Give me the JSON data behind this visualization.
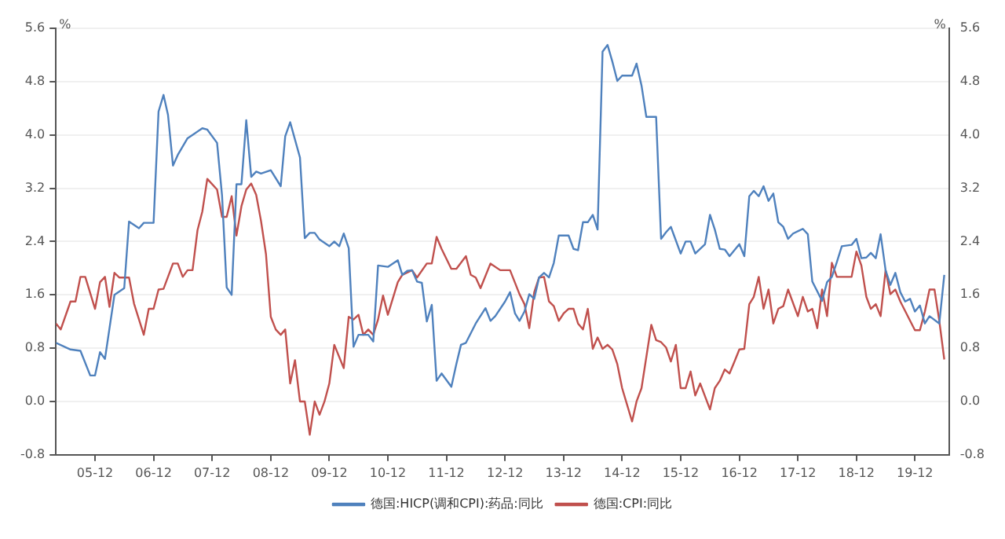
{
  "chart_data": {
    "type": "line",
    "ylabel": "%",
    "y2label": "%",
    "xlim": [
      "2005-04",
      "2020-07"
    ],
    "xticks": [
      {
        "value": "2005-12",
        "label": "05-12"
      },
      {
        "value": "2006-12",
        "label": "06-12"
      },
      {
        "value": "2007-12",
        "label": "07-12"
      },
      {
        "value": "2008-12",
        "label": "08-12"
      },
      {
        "value": "2009-12",
        "label": "09-12"
      },
      {
        "value": "2010-12",
        "label": "10-12"
      },
      {
        "value": "2011-12",
        "label": "11-12"
      },
      {
        "value": "2012-12",
        "label": "12-12"
      },
      {
        "value": "2013-12",
        "label": "13-12"
      },
      {
        "value": "2014-12",
        "label": "14-12"
      },
      {
        "value": "2015-12",
        "label": "15-12"
      },
      {
        "value": "2016-12",
        "label": "16-12"
      },
      {
        "value": "2017-12",
        "label": "17-12"
      },
      {
        "value": "2018-12",
        "label": "18-12"
      },
      {
        "value": "2019-12",
        "label": "19-12"
      }
    ],
    "ylim": [
      -0.8,
      5.6
    ],
    "yticks": [
      {
        "value": -0.8,
        "label": "-0.8"
      },
      {
        "value": 0,
        "label": "0.0"
      },
      {
        "value": 0.8,
        "label": "0.8"
      },
      {
        "value": 1.6,
        "label": "1.6"
      },
      {
        "value": 2.4,
        "label": "2.4"
      },
      {
        "value": 3.2,
        "label": "3.2"
      },
      {
        "value": 4,
        "label": "4.0"
      },
      {
        "value": 4.8,
        "label": "4.8"
      },
      {
        "value": 5.6,
        "label": "5.6"
      }
    ],
    "y2lim": [
      -0.8,
      5.6
    ],
    "y2ticks": [
      {
        "value": -0.8,
        "label": "-0.8"
      },
      {
        "value": 0,
        "label": "0.0"
      },
      {
        "value": 0.8,
        "label": "0.8"
      },
      {
        "value": 1.6,
        "label": "1.6"
      },
      {
        "value": 2.4,
        "label": "2.4"
      },
      {
        "value": 3.2,
        "label": "3.2"
      },
      {
        "value": 4,
        "label": "4.0"
      },
      {
        "value": 4.8,
        "label": "4.8"
      },
      {
        "value": 5.6,
        "label": "5.6"
      }
    ],
    "grid": "y",
    "legend": "bottom",
    "marker": "none",
    "line_style": "solid",
    "series": [
      {
        "name": "德国:HICP(调和CPI):药品:同比",
        "color": "#4f81bd",
        "x": [
          "2005-04",
          "2005-07",
          "2005-09",
          "2005-11",
          "2005-12",
          "2006-01",
          "2006-02",
          "2006-04",
          "2006-06",
          "2006-07",
          "2006-09",
          "2006-10",
          "2006-12",
          "2007-01",
          "2007-02",
          "2007-03",
          "2007-04",
          "2007-05",
          "2007-07",
          "2007-08",
          "2007-10",
          "2007-11",
          "2008-01",
          "2008-02",
          "2008-03",
          "2008-04",
          "2008-05",
          "2008-06",
          "2008-07",
          "2008-08",
          "2008-09",
          "2008-10",
          "2008-12",
          "2009-02",
          "2009-03",
          "2009-04",
          "2009-06",
          "2009-07",
          "2009-08",
          "2009-09",
          "2009-10",
          "2009-12",
          "2010-01",
          "2010-02",
          "2010-03",
          "2010-04",
          "2010-05",
          "2010-06",
          "2010-08",
          "2010-09",
          "2010-10",
          "2010-12",
          "2011-02",
          "2011-03",
          "2011-04",
          "2011-05",
          "2011-06",
          "2011-07",
          "2011-08",
          "2011-09",
          "2011-10",
          "2011-11",
          "2012-01",
          "2012-02",
          "2012-03",
          "2012-04",
          "2012-06",
          "2012-08",
          "2012-09",
          "2012-10",
          "2012-12",
          "2013-01",
          "2013-02",
          "2013-03",
          "2013-04",
          "2013-05",
          "2013-06",
          "2013-07",
          "2013-08",
          "2013-09",
          "2013-10",
          "2013-11",
          "2014-01",
          "2014-02",
          "2014-03",
          "2014-04",
          "2014-05",
          "2014-06",
          "2014-07",
          "2014-08",
          "2014-09",
          "2014-10",
          "2014-11",
          "2014-12",
          "2015-02",
          "2015-03",
          "2015-04",
          "2015-05",
          "2015-07",
          "2015-08",
          "2015-09",
          "2015-10",
          "2015-12",
          "2016-01",
          "2016-02",
          "2016-03",
          "2016-05",
          "2016-06",
          "2016-07",
          "2016-08",
          "2016-09",
          "2016-10",
          "2016-12",
          "2017-01",
          "2017-02",
          "2017-03",
          "2017-04",
          "2017-05",
          "2017-06",
          "2017-07",
          "2017-08",
          "2017-09",
          "2017-10",
          "2017-11",
          "2018-01",
          "2018-02",
          "2018-03",
          "2018-05",
          "2018-06",
          "2018-07",
          "2018-08",
          "2018-09",
          "2018-11",
          "2018-12",
          "2019-01",
          "2019-02",
          "2019-03",
          "2019-04",
          "2019-05",
          "2019-06",
          "2019-07",
          "2019-08",
          "2019-09",
          "2019-10",
          "2019-11",
          "2019-12",
          "2020-01",
          "2020-02",
          "2020-03",
          "2020-05",
          "2020-06"
        ],
        "values": [
          0.88,
          0.78,
          0.76,
          0.39,
          0.39,
          0.74,
          0.64,
          1.6,
          1.7,
          2.7,
          2.6,
          2.68,
          2.68,
          4.35,
          4.6,
          4.3,
          3.54,
          3.7,
          3.95,
          4.0,
          4.1,
          4.08,
          3.88,
          3.09,
          1.71,
          1.6,
          3.26,
          3.26,
          4.22,
          3.37,
          3.45,
          3.42,
          3.47,
          3.23,
          3.98,
          4.19,
          3.66,
          2.45,
          2.53,
          2.53,
          2.43,
          2.33,
          2.4,
          2.33,
          2.52,
          2.3,
          0.82,
          1.0,
          1.0,
          0.9,
          2.04,
          2.02,
          2.12,
          1.9,
          1.96,
          1.97,
          1.8,
          1.78,
          1.2,
          1.45,
          0.31,
          0.42,
          0.22,
          0.56,
          0.85,
          0.88,
          1.17,
          1.4,
          1.21,
          1.28,
          1.5,
          1.64,
          1.32,
          1.21,
          1.35,
          1.61,
          1.54,
          1.86,
          1.93,
          1.86,
          2.08,
          2.49,
          2.49,
          2.29,
          2.27,
          2.69,
          2.69,
          2.8,
          2.58,
          5.25,
          5.35,
          5.1,
          4.81,
          4.89,
          4.89,
          5.07,
          4.74,
          4.27,
          4.27,
          2.44,
          2.54,
          2.62,
          2.22,
          2.4,
          2.4,
          2.22,
          2.36,
          2.8,
          2.58,
          2.29,
          2.28,
          2.18,
          2.36,
          2.18,
          3.08,
          3.16,
          3.08,
          3.23,
          3.01,
          3.12,
          2.69,
          2.62,
          2.44,
          2.52,
          2.59,
          2.51,
          1.8,
          1.51,
          1.79,
          1.87,
          2.09,
          2.33,
          2.35,
          2.44,
          2.15,
          2.16,
          2.23,
          2.15,
          2.51,
          1.97,
          1.75,
          1.93,
          1.64,
          1.5,
          1.54,
          1.35,
          1.44,
          1.17,
          1.28,
          1.17,
          1.9
        ]
      },
      {
        "name": "德国:CPI:同比",
        "color": "#c0504d",
        "x": [
          "2005-04",
          "2005-05",
          "2005-07",
          "2005-08",
          "2005-09",
          "2005-10",
          "2005-12",
          "2006-01",
          "2006-02",
          "2006-03",
          "2006-04",
          "2006-05",
          "2006-07",
          "2006-08",
          "2006-10",
          "2006-11",
          "2006-12",
          "2007-01",
          "2007-02",
          "2007-04",
          "2007-05",
          "2007-06",
          "2007-07",
          "2007-08",
          "2007-09",
          "2007-10",
          "2007-11",
          "2008-01",
          "2008-02",
          "2008-03",
          "2008-04",
          "2008-05",
          "2008-06",
          "2008-07",
          "2008-08",
          "2008-09",
          "2008-10",
          "2008-11",
          "2008-12",
          "2009-01",
          "2009-02",
          "2009-03",
          "2009-04",
          "2009-05",
          "2009-06",
          "2009-07",
          "2009-08",
          "2009-09",
          "2009-10",
          "2009-11",
          "2009-12",
          "2010-01",
          "2010-03",
          "2010-04",
          "2010-05",
          "2010-06",
          "2010-07",
          "2010-08",
          "2010-09",
          "2010-10",
          "2010-11",
          "2010-12",
          "2011-02",
          "2011-03",
          "2011-05",
          "2011-06",
          "2011-08",
          "2011-09",
          "2011-10",
          "2011-11",
          "2012-01",
          "2012-02",
          "2012-04",
          "2012-05",
          "2012-06",
          "2012-07",
          "2012-09",
          "2012-11",
          "2013-01",
          "2013-03",
          "2013-04",
          "2013-05",
          "2013-06",
          "2013-07",
          "2013-08",
          "2013-09",
          "2013-10",
          "2013-11",
          "2013-12",
          "2014-01",
          "2014-02",
          "2014-03",
          "2014-04",
          "2014-05",
          "2014-06",
          "2014-07",
          "2014-08",
          "2014-09",
          "2014-10",
          "2014-11",
          "2014-12",
          "2015-02",
          "2015-03",
          "2015-04",
          "2015-06",
          "2015-07",
          "2015-08",
          "2015-09",
          "2015-10",
          "2015-11",
          "2015-12",
          "2016-01",
          "2016-02",
          "2016-03",
          "2016-04",
          "2016-06",
          "2016-07",
          "2016-08",
          "2016-09",
          "2016-10",
          "2016-11",
          "2016-12",
          "2017-01",
          "2017-02",
          "2017-03",
          "2017-04",
          "2017-05",
          "2017-06",
          "2017-07",
          "2017-08",
          "2017-09",
          "2017-10",
          "2017-12",
          "2018-01",
          "2018-02",
          "2018-03",
          "2018-04",
          "2018-05",
          "2018-06",
          "2018-07",
          "2018-08",
          "2018-09",
          "2018-11",
          "2018-12",
          "2019-01",
          "2019-02",
          "2019-03",
          "2019-04",
          "2019-05",
          "2019-06",
          "2019-07",
          "2019-08",
          "2019-09",
          "2019-11",
          "2019-12",
          "2020-01",
          "2020-02",
          "2020-03",
          "2020-04",
          "2020-05",
          "2020-06"
        ],
        "values": [
          1.17,
          1.08,
          1.5,
          1.5,
          1.87,
          1.87,
          1.39,
          1.79,
          1.87,
          1.42,
          1.93,
          1.86,
          1.86,
          1.47,
          1.0,
          1.39,
          1.39,
          1.68,
          1.69,
          2.07,
          2.07,
          1.87,
          1.97,
          1.97,
          2.57,
          2.85,
          3.34,
          3.18,
          2.77,
          2.77,
          3.08,
          2.49,
          2.93,
          3.18,
          3.27,
          3.1,
          2.71,
          2.21,
          1.27,
          1.08,
          1.0,
          1.08,
          0.27,
          0.62,
          0.0,
          0.0,
          -0.5,
          0.0,
          -0.2,
          0.0,
          0.27,
          0.85,
          0.5,
          1.27,
          1.23,
          1.3,
          1.0,
          1.08,
          1.0,
          1.23,
          1.59,
          1.3,
          1.79,
          1.9,
          1.97,
          1.86,
          2.07,
          2.07,
          2.47,
          2.29,
          1.99,
          1.99,
          2.18,
          1.9,
          1.86,
          1.7,
          2.07,
          1.97,
          1.97,
          1.61,
          1.46,
          1.1,
          1.64,
          1.86,
          1.87,
          1.5,
          1.43,
          1.21,
          1.32,
          1.39,
          1.39,
          1.17,
          1.08,
          1.39,
          0.79,
          0.96,
          0.79,
          0.85,
          0.78,
          0.56,
          0.2,
          -0.3,
          0.0,
          0.2,
          1.15,
          0.92,
          0.89,
          0.81,
          0.6,
          0.85,
          0.2,
          0.2,
          0.45,
          0.09,
          0.27,
          -0.12,
          0.2,
          0.31,
          0.48,
          0.42,
          0.6,
          0.78,
          0.79,
          1.46,
          1.57,
          1.87,
          1.39,
          1.68,
          1.17,
          1.39,
          1.43,
          1.68,
          1.28,
          1.57,
          1.35,
          1.39,
          1.1,
          1.68,
          1.28,
          2.08,
          1.87,
          1.87,
          1.87,
          2.25,
          2.04,
          1.57,
          1.39,
          1.46,
          1.28,
          1.97,
          1.61,
          1.68,
          1.5,
          1.21,
          1.07,
          1.07,
          1.35,
          1.68,
          1.68,
          1.21,
          0.63
        ]
      }
    ]
  }
}
